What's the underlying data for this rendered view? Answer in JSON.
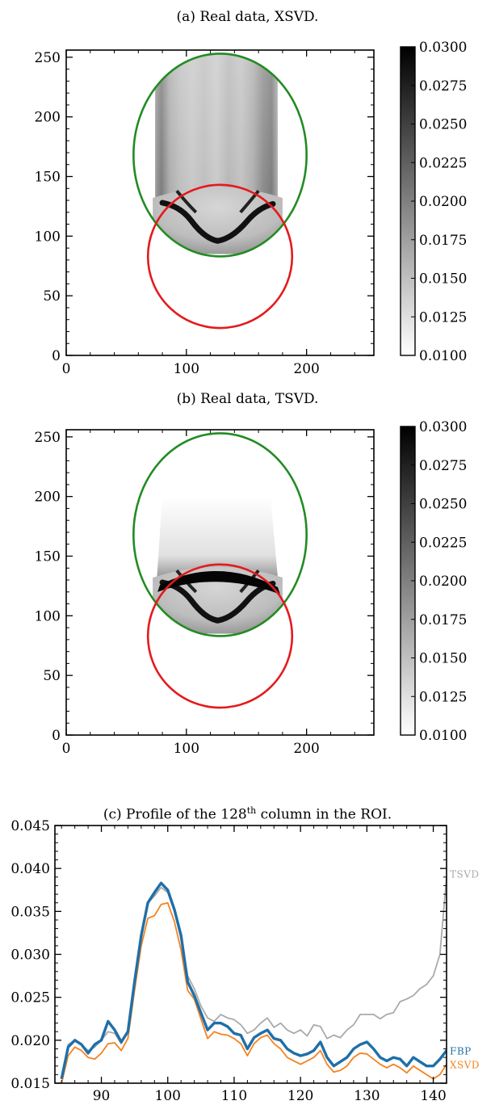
{
  "panels": {
    "a": {
      "caption": "(a) Real data, XSVD."
    },
    "b": {
      "caption": "(b) Real data, TSVD."
    },
    "c": {
      "caption_prefix": "(c) Profile of the 128",
      "caption_sup": "th",
      "caption_suffix": " column in the ROI."
    }
  },
  "chart_data": [
    {
      "type": "heatmap",
      "id": "a",
      "title": "(a) Real data, XSVD.",
      "xlim": [
        0,
        256
      ],
      "ylim": [
        0,
        256
      ],
      "xticks": [
        0,
        100,
        200
      ],
      "yticks": [
        0,
        50,
        100,
        150,
        200,
        250
      ],
      "colorbar": {
        "range": [
          0.01,
          0.03
        ],
        "ticks": [
          "0.0300",
          "0.0275",
          "0.0250",
          "0.0225",
          "0.0200",
          "0.0175",
          "0.0150",
          "0.0125",
          "0.0100"
        ],
        "cmap": "gray_r"
      },
      "overlays": [
        {
          "shape": "ellipse",
          "color": "#228b22",
          "center": [
            128,
            168
          ],
          "radius": [
            72,
            85
          ]
        },
        {
          "shape": "circle",
          "color": "#e41a1c",
          "center": [
            128,
            83
          ],
          "radius": 60
        }
      ]
    },
    {
      "type": "heatmap",
      "id": "b",
      "title": "(b) Real data, TSVD.",
      "xlim": [
        0,
        256
      ],
      "ylim": [
        0,
        256
      ],
      "xticks": [
        0,
        100,
        200
      ],
      "yticks": [
        0,
        50,
        100,
        150,
        200,
        250
      ],
      "colorbar": {
        "range": [
          0.01,
          0.03
        ],
        "ticks": [
          "0.0300",
          "0.0275",
          "0.0250",
          "0.0225",
          "0.0200",
          "0.0175",
          "0.0150",
          "0.0125",
          "0.0100"
        ],
        "cmap": "gray_r"
      },
      "overlays": [
        {
          "shape": "ellipse",
          "color": "#228b22",
          "center": [
            128,
            168
          ],
          "radius": [
            72,
            85
          ]
        },
        {
          "shape": "circle",
          "color": "#e41a1c",
          "center": [
            128,
            83
          ],
          "radius": 60
        }
      ]
    },
    {
      "type": "line",
      "id": "c",
      "title": "(c) Profile of the 128th column in the ROI.",
      "xlim": [
        83,
        142
      ],
      "ylim": [
        0.015,
        0.045
      ],
      "xticks": [
        90,
        100,
        110,
        120,
        130,
        140
      ],
      "yticks": [
        "0.015",
        "0.020",
        "0.025",
        "0.030",
        "0.035",
        "0.040",
        "0.045"
      ],
      "x": [
        84,
        85,
        86,
        87,
        88,
        89,
        90,
        91,
        92,
        93,
        94,
        95,
        96,
        97,
        98,
        99,
        100,
        101,
        102,
        103,
        104,
        105,
        106,
        107,
        108,
        109,
        110,
        111,
        112,
        113,
        114,
        115,
        116,
        117,
        118,
        119,
        120,
        121,
        122,
        123,
        124,
        125,
        126,
        127,
        128,
        129,
        130,
        131,
        132,
        133,
        134,
        135,
        136,
        137,
        138,
        139,
        140,
        141,
        142
      ],
      "series": [
        {
          "name": "TSVD",
          "color": "#aaaaaa",
          "values": [
            0.0155,
            0.0195,
            0.02,
            0.0195,
            0.0188,
            0.0192,
            0.02,
            0.021,
            0.0208,
            0.0196,
            0.0212,
            0.0265,
            0.0318,
            0.036,
            0.0368,
            0.0378,
            0.0372,
            0.035,
            0.0318,
            0.0275,
            0.026,
            0.024,
            0.0226,
            0.0222,
            0.023,
            0.0226,
            0.0224,
            0.0218,
            0.0208,
            0.0212,
            0.022,
            0.0226,
            0.0215,
            0.022,
            0.0212,
            0.0208,
            0.0212,
            0.0205,
            0.0218,
            0.0216,
            0.0202,
            0.0206,
            0.0203,
            0.0212,
            0.0218,
            0.023,
            0.023,
            0.023,
            0.0225,
            0.023,
            0.0232,
            0.0245,
            0.0248,
            0.0252,
            0.026,
            0.0265,
            0.0275,
            0.03,
            0.039
          ]
        },
        {
          "name": "FBP",
          "color": "#1f6fa8",
          "values": [
            0.0155,
            0.0192,
            0.02,
            0.0195,
            0.0185,
            0.0195,
            0.02,
            0.0222,
            0.0212,
            0.0198,
            0.021,
            0.0268,
            0.0322,
            0.036,
            0.0372,
            0.0383,
            0.0375,
            0.0352,
            0.0322,
            0.0268,
            0.0252,
            0.0232,
            0.0212,
            0.022,
            0.022,
            0.0216,
            0.0208,
            0.0206,
            0.019,
            0.0203,
            0.0208,
            0.0212,
            0.0202,
            0.02,
            0.019,
            0.0185,
            0.0182,
            0.0184,
            0.0188,
            0.0198,
            0.018,
            0.017,
            0.0175,
            0.018,
            0.019,
            0.0195,
            0.0198,
            0.019,
            0.018,
            0.0176,
            0.018,
            0.0178,
            0.017,
            0.018,
            0.0175,
            0.017,
            0.017,
            0.0178,
            0.0188
          ]
        },
        {
          "name": "XSVD",
          "color": "#f5821f",
          "values": [
            0.015,
            0.0182,
            0.0192,
            0.0188,
            0.018,
            0.0178,
            0.0185,
            0.0196,
            0.0197,
            0.0188,
            0.0202,
            0.0258,
            0.031,
            0.0342,
            0.0345,
            0.0358,
            0.036,
            0.0338,
            0.0305,
            0.0258,
            0.0248,
            0.0225,
            0.0202,
            0.021,
            0.0207,
            0.0206,
            0.0202,
            0.0196,
            0.0182,
            0.0196,
            0.0203,
            0.0206,
            0.0196,
            0.019,
            0.018,
            0.0176,
            0.0172,
            0.0176,
            0.018,
            0.0188,
            0.0172,
            0.0163,
            0.0165,
            0.017,
            0.018,
            0.0185,
            0.0184,
            0.0178,
            0.0172,
            0.0168,
            0.0172,
            0.0168,
            0.0162,
            0.017,
            0.0165,
            0.016,
            0.0155,
            0.016,
            0.0172
          ]
        }
      ]
    }
  ]
}
